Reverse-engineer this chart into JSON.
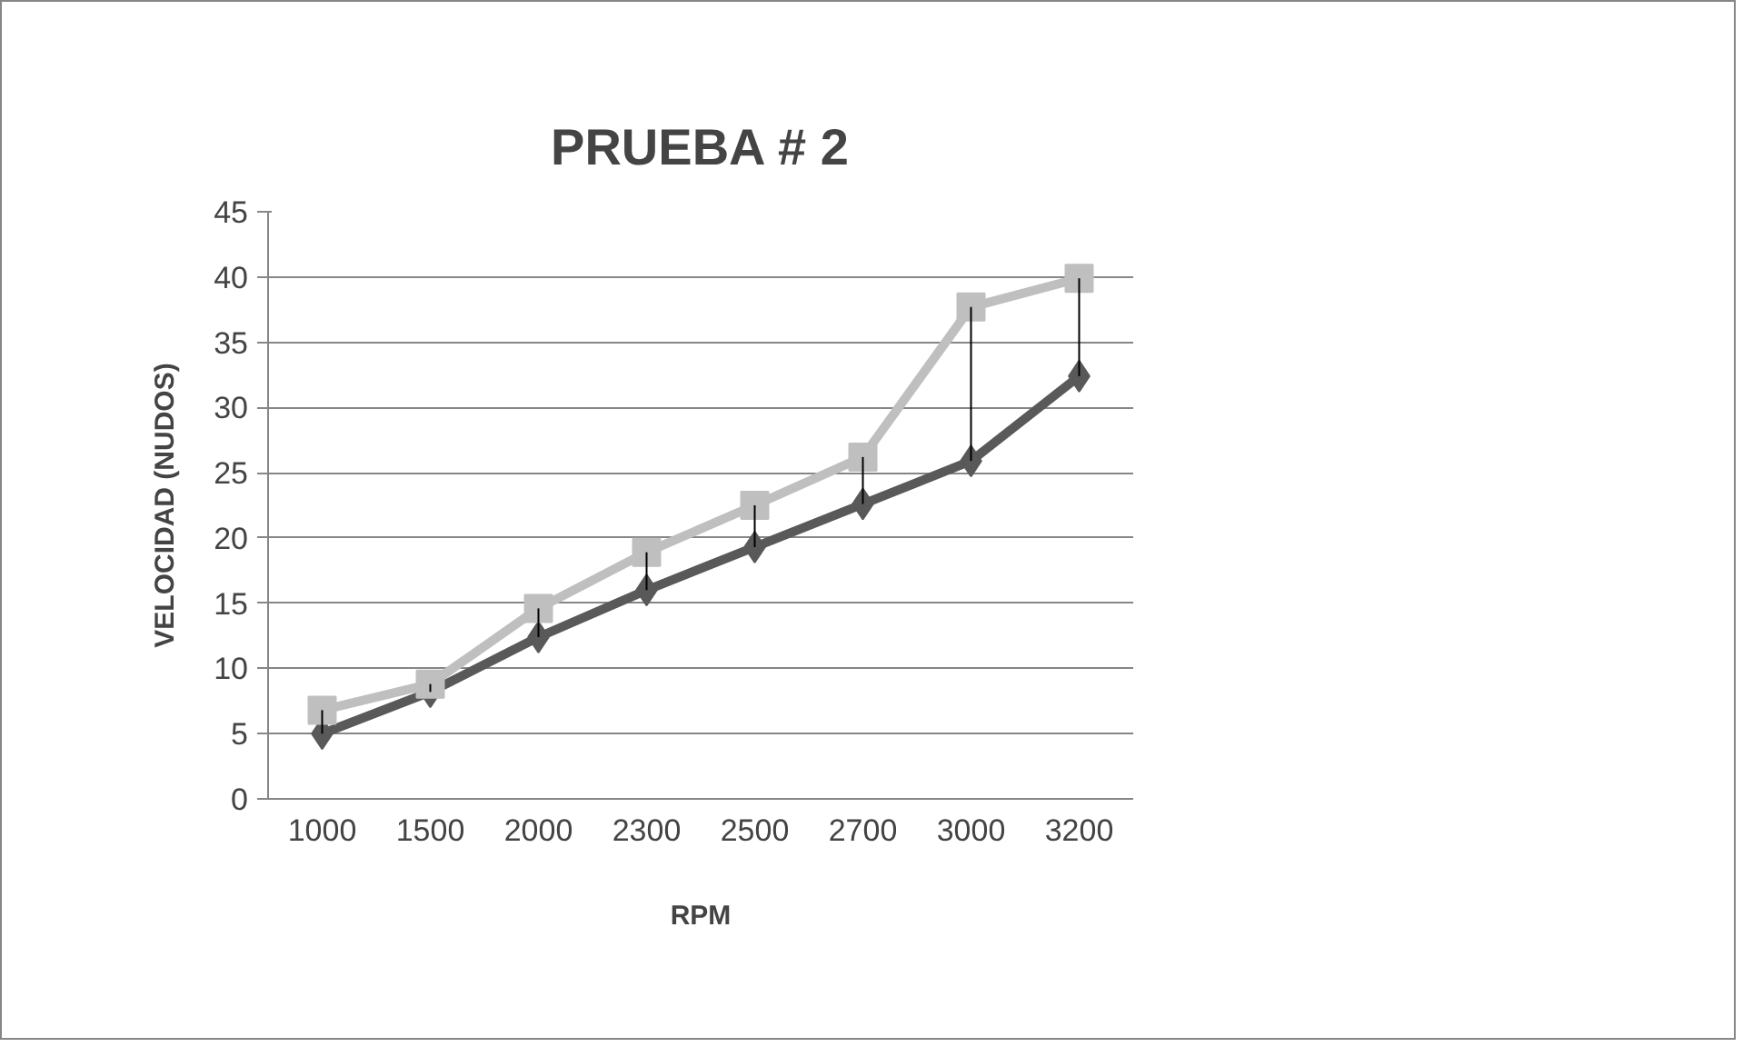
{
  "chart_data": {
    "type": "line",
    "title": "PRUEBA # 2",
    "xlabel": "RPM",
    "ylabel": "VELOCIDAD (NUDOS)",
    "categories": [
      "1000",
      "1500",
      "2000",
      "2300",
      "2500",
      "2700",
      "3000",
      "3200"
    ],
    "series": [
      {
        "color": "#595959",
        "marker": "diamond",
        "values": [
          5,
          8.2,
          12.4,
          16,
          19.3,
          22.6,
          25.9,
          32.4
        ],
        "errors": [
          [
            5,
            6.8
          ],
          [
            8.2,
            8.8
          ],
          [
            12.4,
            14.6
          ],
          [
            16,
            18.9
          ],
          [
            19.3,
            22.5
          ],
          [
            22.6,
            26.2
          ],
          [
            25.9,
            37.7
          ],
          [
            32.4,
            39.9
          ]
        ]
      },
      {
        "color": "#bfbfbf",
        "marker": "square",
        "values": [
          6.8,
          8.8,
          14.6,
          18.9,
          22.5,
          26.2,
          37.7,
          39.9
        ]
      }
    ],
    "ylim": [
      0,
      45
    ],
    "yticks": [
      0,
      5,
      10,
      15,
      20,
      25,
      30,
      35,
      40,
      45
    ],
    "grid": "y",
    "line_style": "solid"
  }
}
